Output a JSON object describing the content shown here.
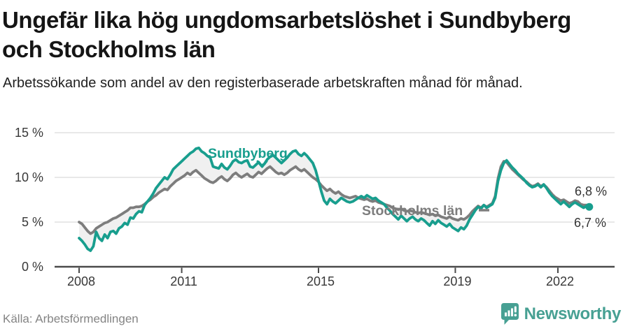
{
  "header": {
    "title": "Ungefär lika hög ungdomsarbetslöshet i Sundbyberg och Stockholms län",
    "subtitle": "Arbetssökande som andel av den registerbaserade arbetskraften månad för månad."
  },
  "chart_data": {
    "type": "line",
    "unit": "percent",
    "title": "Ungefär lika hög ungdomsarbetslöshet i Sundbyberg och Stockholms län",
    "x_range": [
      "2008-01",
      "2022-12"
    ],
    "x_frequency": "monthly",
    "ylim": [
      0,
      15
    ],
    "grid": true,
    "legend_position": "inline-labels",
    "y_ticks": [
      {
        "value": 0,
        "label": "0 %"
      },
      {
        "value": 5,
        "label": "5 %"
      },
      {
        "value": 10,
        "label": "10 %"
      },
      {
        "value": 15,
        "label": "15 %"
      }
    ],
    "x_ticks": [
      {
        "label": "2008",
        "month_index": 0
      },
      {
        "label": "2011",
        "month_index": 36
      },
      {
        "label": "2015",
        "month_index": 84
      },
      {
        "label": "2019",
        "month_index": 132
      },
      {
        "label": "2022",
        "month_index": 168
      }
    ],
    "band_fill_color": "#f0f0f0",
    "series": [
      {
        "name": "Sundbyberg",
        "color": "#189e8e",
        "end_label": "6,7 %",
        "end_dot": true,
        "values": [
          3.2,
          2.9,
          2.5,
          2.0,
          1.8,
          2.3,
          3.9,
          3.2,
          2.9,
          3.6,
          3.2,
          3.9,
          4.0,
          3.7,
          4.3,
          4.5,
          4.9,
          4.7,
          5.5,
          5.4,
          5.9,
          6.2,
          6.1,
          6.9,
          7.3,
          7.7,
          8.2,
          8.8,
          9.2,
          9.6,
          10.0,
          9.8,
          10.3,
          10.9,
          11.2,
          11.5,
          11.8,
          12.1,
          12.4,
          12.7,
          12.9,
          13.2,
          13.3,
          12.9,
          12.7,
          12.4,
          12.2,
          11.2,
          11.1,
          11.0,
          11.5,
          11.1,
          10.9,
          11.3,
          11.8,
          12.0,
          11.7,
          11.6,
          11.8,
          11.9,
          11.2,
          11.1,
          11.4,
          11.7,
          11.3,
          11.5,
          12.0,
          12.3,
          12.5,
          12.2,
          11.9,
          11.6,
          11.9,
          12.2,
          12.6,
          12.9,
          13.0,
          12.6,
          12.4,
          12.7,
          12.4,
          12.0,
          11.6,
          10.8,
          9.6,
          8.4,
          7.4,
          7.0,
          7.6,
          7.3,
          7.1,
          7.4,
          7.7,
          7.5,
          7.3,
          7.2,
          7.3,
          7.5,
          7.7,
          7.9,
          7.7,
          8.0,
          7.8,
          7.6,
          7.7,
          7.4,
          7.2,
          7.0,
          6.6,
          6.3,
          5.9,
          5.6,
          5.3,
          5.7,
          5.4,
          5.1,
          5.4,
          5.6,
          5.3,
          5.1,
          5.4,
          5.2,
          4.9,
          4.6,
          5.1,
          4.8,
          5.2,
          4.9,
          4.7,
          4.5,
          4.8,
          4.4,
          4.2,
          4.0,
          4.4,
          4.2,
          4.6,
          5.3,
          5.8,
          6.3,
          6.7,
          6.5,
          6.9,
          6.6,
          6.8,
          7.0,
          7.7,
          9.6,
          10.8,
          11.6,
          11.9,
          11.5,
          11.1,
          10.8,
          10.4,
          10.1,
          9.8,
          9.4,
          9.1,
          8.9,
          9.0,
          9.2,
          8.9,
          9.2,
          8.8,
          8.3,
          7.9,
          7.6,
          7.3,
          7.0,
          7.3,
          7.0,
          6.7,
          7.0,
          7.2,
          7.0,
          6.8,
          6.6,
          6.8,
          6.7
        ]
      },
      {
        "name": "Stockholms län",
        "color": "#7d7d7d",
        "end_label": "6,8 %",
        "end_dot": false,
        "values": [
          5.0,
          4.8,
          4.4,
          4.0,
          3.7,
          3.9,
          4.3,
          4.5,
          4.7,
          4.9,
          5.0,
          5.2,
          5.4,
          5.5,
          5.7,
          5.9,
          6.1,
          6.3,
          6.6,
          6.6,
          6.7,
          6.7,
          6.8,
          7.0,
          7.3,
          7.5,
          7.8,
          8.0,
          8.3,
          8.5,
          8.7,
          8.6,
          9.0,
          9.3,
          9.6,
          9.8,
          10.0,
          10.2,
          10.5,
          10.3,
          10.6,
          10.8,
          10.5,
          10.2,
          9.9,
          9.7,
          9.5,
          9.4,
          9.6,
          9.9,
          10.1,
          9.8,
          9.6,
          9.9,
          10.3,
          10.5,
          10.2,
          10.0,
          10.2,
          10.4,
          10.1,
          10.0,
          10.3,
          10.6,
          10.4,
          10.7,
          11.0,
          11.2,
          10.9,
          10.6,
          10.4,
          10.5,
          10.3,
          10.5,
          10.8,
          11.0,
          11.2,
          10.9,
          10.7,
          10.9,
          10.6,
          10.3,
          10.0,
          9.8,
          9.5,
          9.1,
          8.8,
          8.5,
          8.7,
          8.4,
          8.2,
          8.4,
          8.1,
          7.9,
          7.8,
          7.7,
          7.8,
          7.9,
          7.7,
          7.6,
          7.5,
          7.6,
          7.4,
          7.3,
          7.4,
          7.2,
          7.1,
          7.0,
          6.9,
          6.8,
          6.6,
          6.5,
          6.4,
          6.5,
          6.3,
          6.2,
          6.3,
          6.2,
          6.1,
          6.0,
          6.1,
          6.0,
          5.9,
          5.8,
          5.9,
          5.7,
          5.8,
          5.6,
          5.5,
          5.4,
          5.6,
          5.4,
          5.3,
          5.2,
          5.4,
          5.3,
          5.5,
          5.8,
          6.2,
          6.5,
          6.8,
          6.6,
          6.9,
          6.7,
          6.9,
          7.1,
          7.9,
          9.9,
          11.2,
          11.8,
          11.7,
          11.3,
          10.9,
          10.6,
          10.3,
          10.0,
          9.7,
          9.5,
          9.2,
          9.0,
          9.1,
          9.3,
          9.0,
          9.2,
          8.9,
          8.5,
          8.1,
          7.8,
          7.6,
          7.4,
          7.5,
          7.3,
          7.1,
          7.2,
          7.4,
          7.3,
          7.0,
          6.9,
          6.9,
          6.8
        ]
      }
    ]
  },
  "footer": {
    "source": "Källa: Arbetsförmedlingen",
    "brand": "Newsworthy",
    "brand_color": "#47a093"
  }
}
